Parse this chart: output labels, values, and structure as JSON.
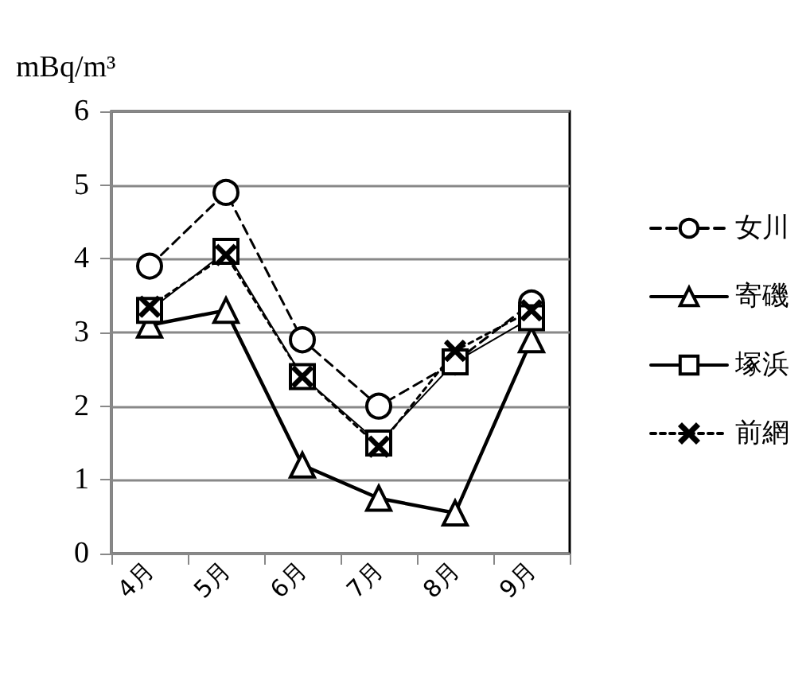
{
  "chart_data": {
    "type": "line",
    "ylabel": "mBq/m³",
    "categories": [
      "4月",
      "5月",
      "6月",
      "7月",
      "8月",
      "9月"
    ],
    "series": [
      {
        "name": "女川",
        "color": "#000000",
        "marker": "circle",
        "line_style": "dashed",
        "values": [
          3.9,
          4.9,
          2.9,
          2.0,
          2.6,
          3.4
        ]
      },
      {
        "name": "寄磯",
        "color": "#000000",
        "marker": "triangle",
        "line_style": "solid",
        "values": [
          3.1,
          3.3,
          1.2,
          0.75,
          0.55,
          2.9
        ]
      },
      {
        "name": "塚浜",
        "color": "#000000",
        "marker": "square",
        "line_style": "solid",
        "values": [
          3.3,
          4.1,
          2.4,
          1.5,
          2.6,
          3.2
        ]
      },
      {
        "name": "前網",
        "color": "#000000",
        "marker": "cross",
        "line_style": "dotted",
        "values": [
          3.35,
          4.05,
          2.4,
          1.45,
          2.75,
          3.3
        ]
      }
    ],
    "ylim": [
      0,
      6
    ],
    "yticks": [
      0,
      1,
      2,
      3,
      4,
      5,
      6
    ],
    "grid": "y",
    "legend": "right"
  }
}
